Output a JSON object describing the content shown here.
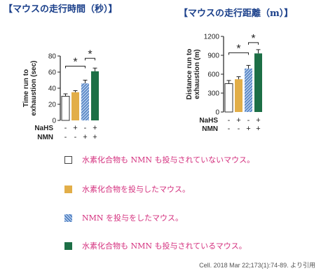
{
  "titles": {
    "left": "【マウスの走行時間（秒）】",
    "right": "【マウスの走行距離（m）】"
  },
  "chart_data": [
    {
      "type": "bar",
      "ylabel": "Time run to exhaustion (sec)",
      "ylim": [
        0,
        80
      ],
      "yticks": [
        "0",
        "20",
        "40",
        "60",
        "80"
      ],
      "grid": false,
      "groups": [
        "none",
        "NaHS",
        "NMN",
        "NaHS + NMN"
      ],
      "values": [
        30,
        35,
        46,
        61
      ],
      "errors": [
        3,
        2,
        4,
        4
      ],
      "colors": [
        "#ffffff",
        "#e2ae48",
        "hatched-blue",
        "#1d6f46"
      ],
      "rows": [
        {
          "label": "NaHS",
          "signs": [
            "-",
            "+",
            "-",
            "+"
          ]
        },
        {
          "label": "NMN",
          "signs": [
            "-",
            "-",
            "+",
            "+"
          ]
        }
      ],
      "significance": [
        {
          "from": 0,
          "to": 2,
          "label": "*"
        },
        {
          "from": 2,
          "to": 3,
          "label": "*"
        }
      ]
    },
    {
      "type": "bar",
      "ylabel": "Distance run to exhaustion (m)",
      "ylim": [
        0,
        1200
      ],
      "yticks": [
        "0",
        "300",
        "600",
        "900",
        "1200"
      ],
      "grid": false,
      "groups": [
        "none",
        "NaHS",
        "NMN",
        "NaHS + NMN"
      ],
      "values": [
        450,
        520,
        690,
        930
      ],
      "errors": [
        50,
        40,
        50,
        60
      ],
      "colors": [
        "#ffffff",
        "#e2ae48",
        "hatched-blue",
        "#1d6f46"
      ],
      "rows": [
        {
          "label": "NaHS",
          "signs": [
            "-",
            "+",
            "-",
            "+"
          ]
        },
        {
          "label": "NMN",
          "signs": [
            "-",
            "-",
            "+",
            "+"
          ]
        }
      ],
      "significance": [
        {
          "from": 0,
          "to": 2,
          "label": "*"
        },
        {
          "from": 2,
          "to": 3,
          "label": "*"
        }
      ]
    }
  ],
  "legend": [
    {
      "swatch": "white",
      "text": "水素化合物も NMN も投与されていないマウス。"
    },
    {
      "swatch": "orange",
      "text": "水素化合物を投与したマウス。"
    },
    {
      "swatch": "hatched-blue",
      "text": "NMN を投与をしたマウス。"
    },
    {
      "swatch": "green",
      "text": "水素化合物も NMN も投与されているマウス。"
    }
  ],
  "citation": "Cell. 2018 Mar 22;173(1):74-89. より引用"
}
